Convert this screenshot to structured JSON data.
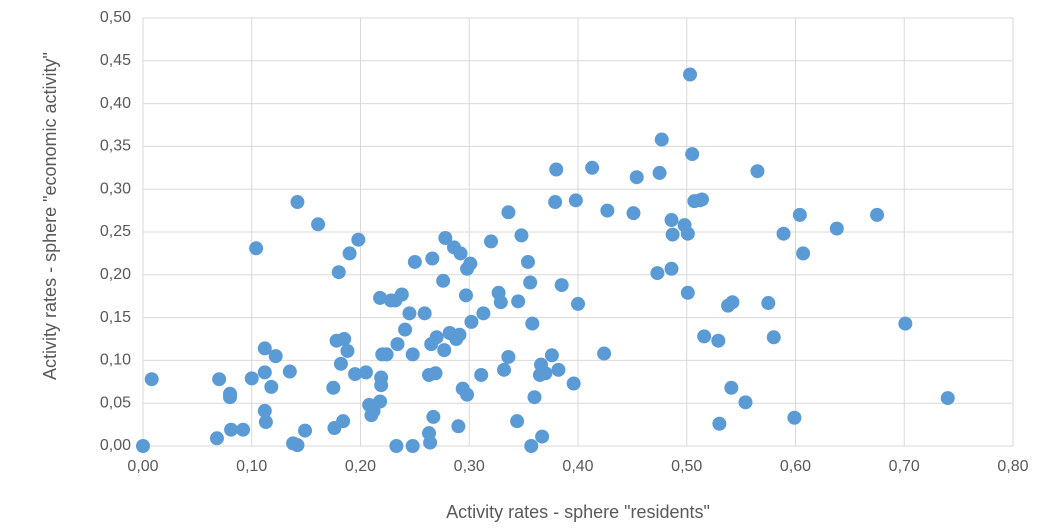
{
  "chart_data": {
    "type": "scatter",
    "x_label": "Activity rates - sphere \"residents\"",
    "y_label": "Activity rates - sphere \"economic activity\"",
    "color": "#5b9bd5",
    "grid": true,
    "xlim": [
      0,
      0.8
    ],
    "xticks": [
      {
        "value": 0,
        "label": "0,00"
      },
      {
        "value": 0.1,
        "label": "0,10"
      },
      {
        "value": 0.2,
        "label": "0,20"
      },
      {
        "value": 0.3,
        "label": "0,30"
      },
      {
        "value": 0.4,
        "label": "0,40"
      },
      {
        "value": 0.5,
        "label": "0,50"
      },
      {
        "value": 0.6,
        "label": "0,60"
      },
      {
        "value": 0.7,
        "label": "0,70"
      },
      {
        "value": 0.8,
        "label": "0,80"
      }
    ],
    "ylim": [
      0,
      0.5
    ],
    "yticks": [
      {
        "value": 0,
        "label": "0,00"
      },
      {
        "value": 0.05,
        "label": "0,05"
      },
      {
        "value": 0.1,
        "label": "0,10"
      },
      {
        "value": 0.15,
        "label": "0,15"
      },
      {
        "value": 0.2,
        "label": "0,20"
      },
      {
        "value": 0.25,
        "label": "0,25"
      },
      {
        "value": 0.3,
        "label": "0,30"
      },
      {
        "value": 0.35,
        "label": "0,35"
      },
      {
        "value": 0.4,
        "label": "0,40"
      },
      {
        "value": 0.45,
        "label": "0,45"
      },
      {
        "value": 0.5,
        "label": "0,50"
      }
    ],
    "x": [
      0.0,
      0.008,
      0.068,
      0.07,
      0.08,
      0.08,
      0.081,
      0.092,
      0.1,
      0.104,
      0.112,
      0.112,
      0.112,
      0.113,
      0.118,
      0.122,
      0.135,
      0.138,
      0.142,
      0.142,
      0.149,
      0.161,
      0.175,
      0.176,
      0.178,
      0.18,
      0.182,
      0.184,
      0.185,
      0.188,
      0.19,
      0.195,
      0.198,
      0.205,
      0.208,
      0.21,
      0.212,
      0.218,
      0.218,
      0.219,
      0.219,
      0.22,
      0.224,
      0.228,
      0.232,
      0.233,
      0.234,
      0.238,
      0.241,
      0.245,
      0.248,
      0.248,
      0.25,
      0.259,
      0.263,
      0.263,
      0.264,
      0.265,
      0.266,
      0.267,
      0.269,
      0.27,
      0.276,
      0.277,
      0.278,
      0.282,
      0.286,
      0.288,
      0.29,
      0.291,
      0.292,
      0.294,
      0.297,
      0.298,
      0.298,
      0.301,
      0.302,
      0.311,
      0.313,
      0.32,
      0.327,
      0.329,
      0.332,
      0.336,
      0.336,
      0.344,
      0.345,
      0.348,
      0.354,
      0.356,
      0.357,
      0.358,
      0.36,
      0.365,
      0.366,
      0.367,
      0.37,
      0.376,
      0.379,
      0.38,
      0.382,
      0.385,
      0.396,
      0.398,
      0.4,
      0.413,
      0.424,
      0.427,
      0.451,
      0.454,
      0.473,
      0.475,
      0.477,
      0.486,
      0.486,
      0.487,
      0.498,
      0.501,
      0.501,
      0.503,
      0.505,
      0.507,
      0.512,
      0.514,
      0.516,
      0.529,
      0.53,
      0.538,
      0.541,
      0.542,
      0.554,
      0.565,
      0.575,
      0.58,
      0.589,
      0.599,
      0.604,
      0.607,
      0.638,
      0.675,
      0.701,
      0.74
    ],
    "values": [
      0.0,
      0.078,
      0.009,
      0.078,
      0.061,
      0.057,
      0.019,
      0.019,
      0.079,
      0.231,
      0.114,
      0.086,
      0.041,
      0.028,
      0.069,
      0.105,
      0.087,
      0.003,
      0.001,
      0.285,
      0.018,
      0.259,
      0.068,
      0.021,
      0.123,
      0.203,
      0.096,
      0.029,
      0.125,
      0.111,
      0.225,
      0.084,
      0.241,
      0.086,
      0.048,
      0.036,
      0.041,
      0.173,
      0.052,
      0.071,
      0.08,
      0.107,
      0.107,
      0.17,
      0.17,
      0.0,
      0.119,
      0.177,
      0.136,
      0.155,
      0.107,
      0.0,
      0.215,
      0.155,
      0.015,
      0.083,
      0.004,
      0.119,
      0.219,
      0.034,
      0.085,
      0.127,
      0.193,
      0.112,
      0.243,
      0.132,
      0.232,
      0.125,
      0.023,
      0.13,
      0.225,
      0.067,
      0.176,
      0.207,
      0.06,
      0.213,
      0.145,
      0.083,
      0.155,
      0.239,
      0.179,
      0.168,
      0.089,
      0.273,
      0.104,
      0.029,
      0.169,
      0.246,
      0.215,
      0.191,
      0.0,
      0.143,
      0.057,
      0.083,
      0.095,
      0.011,
      0.085,
      0.106,
      0.285,
      0.323,
      0.089,
      0.188,
      0.073,
      0.287,
      0.166,
      0.325,
      0.108,
      0.275,
      0.272,
      0.314,
      0.202,
      0.319,
      0.358,
      0.264,
      0.207,
      0.247,
      0.258,
      0.179,
      0.248,
      0.434,
      0.341,
      0.286,
      0.287,
      0.288,
      0.128,
      0.123,
      0.026,
      0.164,
      0.068,
      0.168,
      0.051,
      0.321,
      0.167,
      0.127,
      0.248,
      0.033,
      0.27,
      0.225,
      0.254,
      0.27,
      0.143,
      0.056
    ]
  }
}
